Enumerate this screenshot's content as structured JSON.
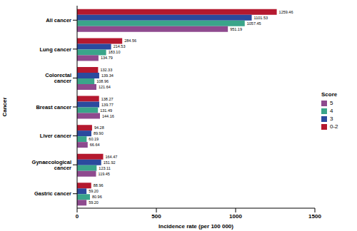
{
  "chart_data": {
    "type": "bar",
    "orientation": "horizontal",
    "x_label": "Incidence rate (per 100 000)",
    "y_label": "Cancer",
    "legend_title": "Score",
    "legend": "right",
    "grid": false,
    "data_labels": true,
    "categories": [
      "All cancer",
      "Lung cancer",
      "Colorectal cancer",
      "Breast cancer",
      "Liver cancer",
      "Gynaecological cancer",
      "Gastric cancer"
    ],
    "xlim": [
      0,
      1500
    ],
    "xticks": [
      0,
      500,
      1000,
      1500
    ],
    "series": [
      {
        "name": "0-2",
        "color": "#b5192f",
        "values": [
          1259.46,
          284.56,
          132.33,
          138.27,
          94.28,
          164.47,
          88.96
        ],
        "value_labels": [
          "1259.46",
          "284.56",
          "132.33",
          "138.27",
          "94.28",
          "164.47",
          "88.96"
        ]
      },
      {
        "name": "3",
        "color": "#2b4a9e",
        "values": [
          1101.53,
          214.53,
          139.34,
          139.77,
          89.9,
          151.92,
          59.2
        ],
        "value_labels": [
          "1101.53",
          "214.53",
          "139.34",
          "139.77",
          "89.90",
          "151.92",
          "59.20"
        ]
      },
      {
        "name": "4",
        "color": "#3aa58a",
        "values": [
          1057.45,
          183.1,
          108.96,
          131.49,
          60.19,
          123.11,
          80.96
        ],
        "value_labels": [
          "1057.45",
          "183.10",
          "108.96",
          "131.49",
          "60.19",
          "123.11",
          "80.96"
        ]
      },
      {
        "name": "5",
        "color": "#8e4a8e",
        "values": [
          951.19,
          134.79,
          121.64,
          144.16,
          66.64,
          119.45,
          59.2
        ],
        "value_labels": [
          "951.19",
          "134.79",
          "121.64",
          "144.16",
          "66.64",
          "119.45",
          "59.20"
        ]
      }
    ]
  }
}
